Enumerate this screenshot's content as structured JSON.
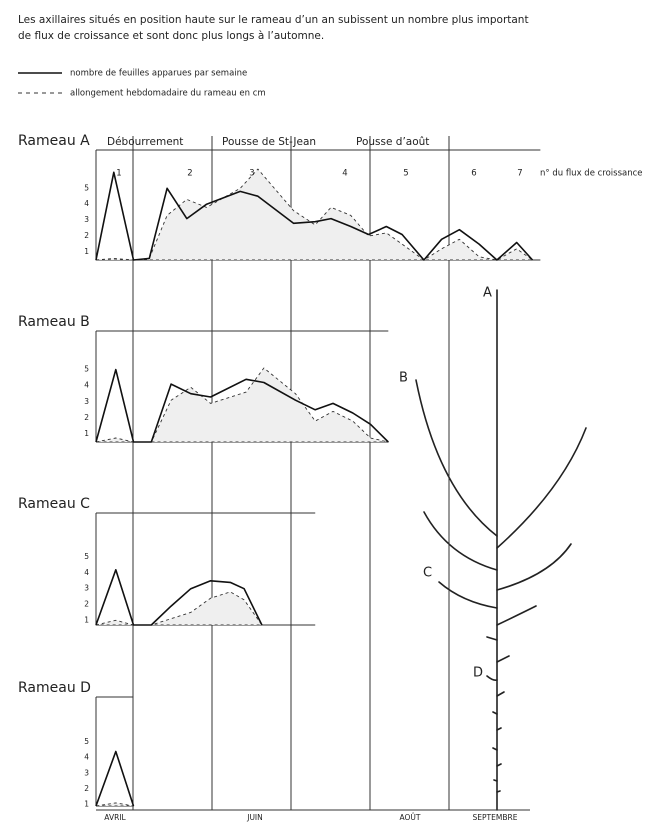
{
  "header": {
    "lines": [
      "Les axillaires situés en position haute sur le rameau d’un an subissent un nombre plus important",
      "de flux de croissance et sont donc plus longs à l’automne."
    ]
  },
  "months": [
    "AVRIL",
    "JUIN",
    "AOÛT",
    "SEPTEMBRE"
  ],
  "diagram": {
    "labels": [
      "A",
      "B",
      "C",
      "D"
    ]
  },
  "chart_data": [
    {
      "type": "line",
      "title": "Rameau A",
      "phases": [
        "Débourrement",
        "Pousse de St-Jean",
        "Pousse d’août"
      ],
      "flux_labels": [
        "1",
        "2",
        "3",
        "4",
        "5",
        "6",
        "7"
      ],
      "flux_axis_label": "n° du flux de croissance",
      "x": [
        0,
        0.9,
        1.9,
        2.7,
        3.6,
        4.6,
        5.6,
        7.3,
        8.2,
        10.0,
        11.1,
        11.9,
        12.9,
        13.8,
        14.7,
        15.5,
        16.6,
        17.5,
        18.4,
        19.4,
        20.3,
        21.3,
        22.1
      ],
      "xlim": [
        0,
        22.5
      ],
      "ylim": [
        0.5,
        7.4
      ],
      "yticks": [
        1,
        2,
        3,
        4,
        5
      ],
      "series": [
        {
          "name": "nombre de feuilles apparues par semaine",
          "color": "#111111",
          "linestyle": "solid",
          "values": [
            0.5,
            6.0,
            0.5,
            0.6,
            5.0,
            3.1,
            4.0,
            4.8,
            4.5,
            2.8,
            2.9,
            3.1,
            2.6,
            2.1,
            2.6,
            2.1,
            0.5,
            1.8,
            2.4,
            1.5,
            0.5,
            1.6,
            0.5
          ]
        },
        {
          "name": "allongement hebdomadaire du rameau en cm",
          "color": "#333333",
          "linestyle": "dashed",
          "fill": "#efefef",
          "values": [
            0.5,
            0.6,
            0.5,
            0.6,
            3.3,
            4.3,
            3.8,
            5.0,
            6.2,
            3.6,
            2.7,
            3.8,
            3.3,
            2.0,
            2.2,
            1.5,
            0.5,
            1.2,
            1.8,
            0.7,
            0.5,
            1.2,
            0.5
          ]
        }
      ]
    },
    {
      "type": "line",
      "title": "Rameau B",
      "x": [
        0,
        1.0,
        1.9,
        2.8,
        3.8,
        4.8,
        5.8,
        7.6,
        8.5,
        10.1,
        11.1,
        12.0,
        13.0,
        13.9,
        14.8
      ],
      "xlim": [
        0,
        14.8
      ],
      "ylim": [
        0.5,
        7.4
      ],
      "yticks": [
        1,
        2,
        3,
        4,
        5
      ],
      "series": [
        {
          "name": "nombre de feuilles apparues par semaine",
          "color": "#111111",
          "linestyle": "solid",
          "values": [
            0.5,
            5.0,
            0.5,
            0.5,
            4.1,
            3.5,
            3.3,
            4.4,
            4.2,
            3.1,
            2.5,
            2.9,
            2.3,
            1.6,
            0.5
          ]
        },
        {
          "name": "allongement hebdomadaire du rameau en cm",
          "color": "#333333",
          "linestyle": "dashed",
          "fill": "#efefef",
          "values": [
            0.5,
            0.75,
            0.5,
            0.5,
            3.1,
            3.9,
            2.9,
            3.6,
            5.1,
            3.5,
            1.8,
            2.4,
            1.8,
            0.75,
            0.5
          ]
        }
      ]
    },
    {
      "type": "line",
      "title": "Rameau C",
      "x": [
        0,
        1.0,
        1.9,
        2.8,
        3.8,
        4.8,
        5.8,
        6.8,
        7.5,
        8.4
      ],
      "xlim": [
        0,
        11.1
      ],
      "ylim": [
        0.7,
        7.8
      ],
      "yticks": [
        1,
        2,
        3,
        4,
        5
      ],
      "series": [
        {
          "name": "nombre de feuilles apparues par semaine",
          "color": "#111111",
          "linestyle": "solid",
          "values": [
            0.7,
            4.2,
            0.7,
            0.7,
            1.9,
            3.0,
            3.5,
            3.4,
            3.0,
            0.7
          ]
        },
        {
          "name": "allongement hebdomadaire du rameau en cm",
          "color": "#333333",
          "linestyle": "dashed",
          "fill": "#efefef",
          "values": [
            0.7,
            1.0,
            0.7,
            0.7,
            1.1,
            1.5,
            2.4,
            2.8,
            2.3,
            0.7
          ]
        }
      ]
    },
    {
      "type": "line",
      "title": "Rameau D",
      "x": [
        0,
        1.0,
        1.9
      ],
      "xlim": [
        0,
        1.9
      ],
      "ylim": [
        0.9,
        7.9
      ],
      "yticks": [
        1,
        2,
        3,
        4,
        5
      ],
      "series": [
        {
          "name": "nombre de feuilles apparues par semaine",
          "color": "#111111",
          "linestyle": "solid",
          "values": [
            0.9,
            4.4,
            0.9
          ]
        },
        {
          "name": "allongement hebdomadaire du rameau en cm",
          "color": "#333333",
          "linestyle": "dashed",
          "fill": "#efefef",
          "values": [
            0.9,
            1.1,
            0.9
          ]
        }
      ]
    }
  ]
}
